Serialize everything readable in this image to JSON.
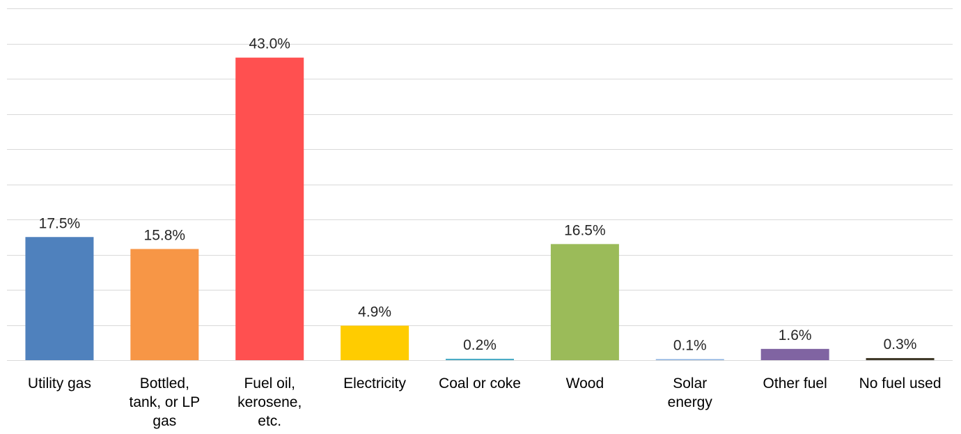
{
  "chart_data": {
    "type": "bar",
    "categories": [
      "Utility gas",
      "Bottled, tank, or LP gas",
      "Fuel oil, kerosene, etc.",
      "Electricity",
      "Coal or coke",
      "Wood",
      "Solar energy",
      "Other fuel",
      "No fuel used"
    ],
    "category_lines": [
      [
        "Utility gas"
      ],
      [
        "Bottled,",
        "tank, or LP",
        "gas"
      ],
      [
        "Fuel oil,",
        "kerosene,",
        "etc."
      ],
      [
        "Electricity"
      ],
      [
        "Coal or coke"
      ],
      [
        "Wood"
      ],
      [
        "Solar",
        "energy"
      ],
      [
        "Other fuel"
      ],
      [
        "No fuel used"
      ]
    ],
    "values": [
      17.5,
      15.8,
      43.0,
      4.9,
      0.2,
      16.5,
      0.1,
      1.6,
      0.3
    ],
    "data_labels": [
      "17.5%",
      "15.8%",
      "43.0%",
      "4.9%",
      "0.2%",
      "16.5%",
      "0.1%",
      "1.6%",
      "0.3%"
    ],
    "colors": [
      "#4f81bd",
      "#f79646",
      "#ff5050",
      "#ffcc00",
      "#4bacc6",
      "#9bbb59",
      "#8db3e2",
      "#8064a2",
      "#403a2a"
    ],
    "ylim": [
      0,
      50
    ],
    "y_grid_step": 5,
    "grid": true,
    "gridline_color": "#d9d9d9",
    "title": "",
    "xlabel": "",
    "ylabel": ""
  }
}
